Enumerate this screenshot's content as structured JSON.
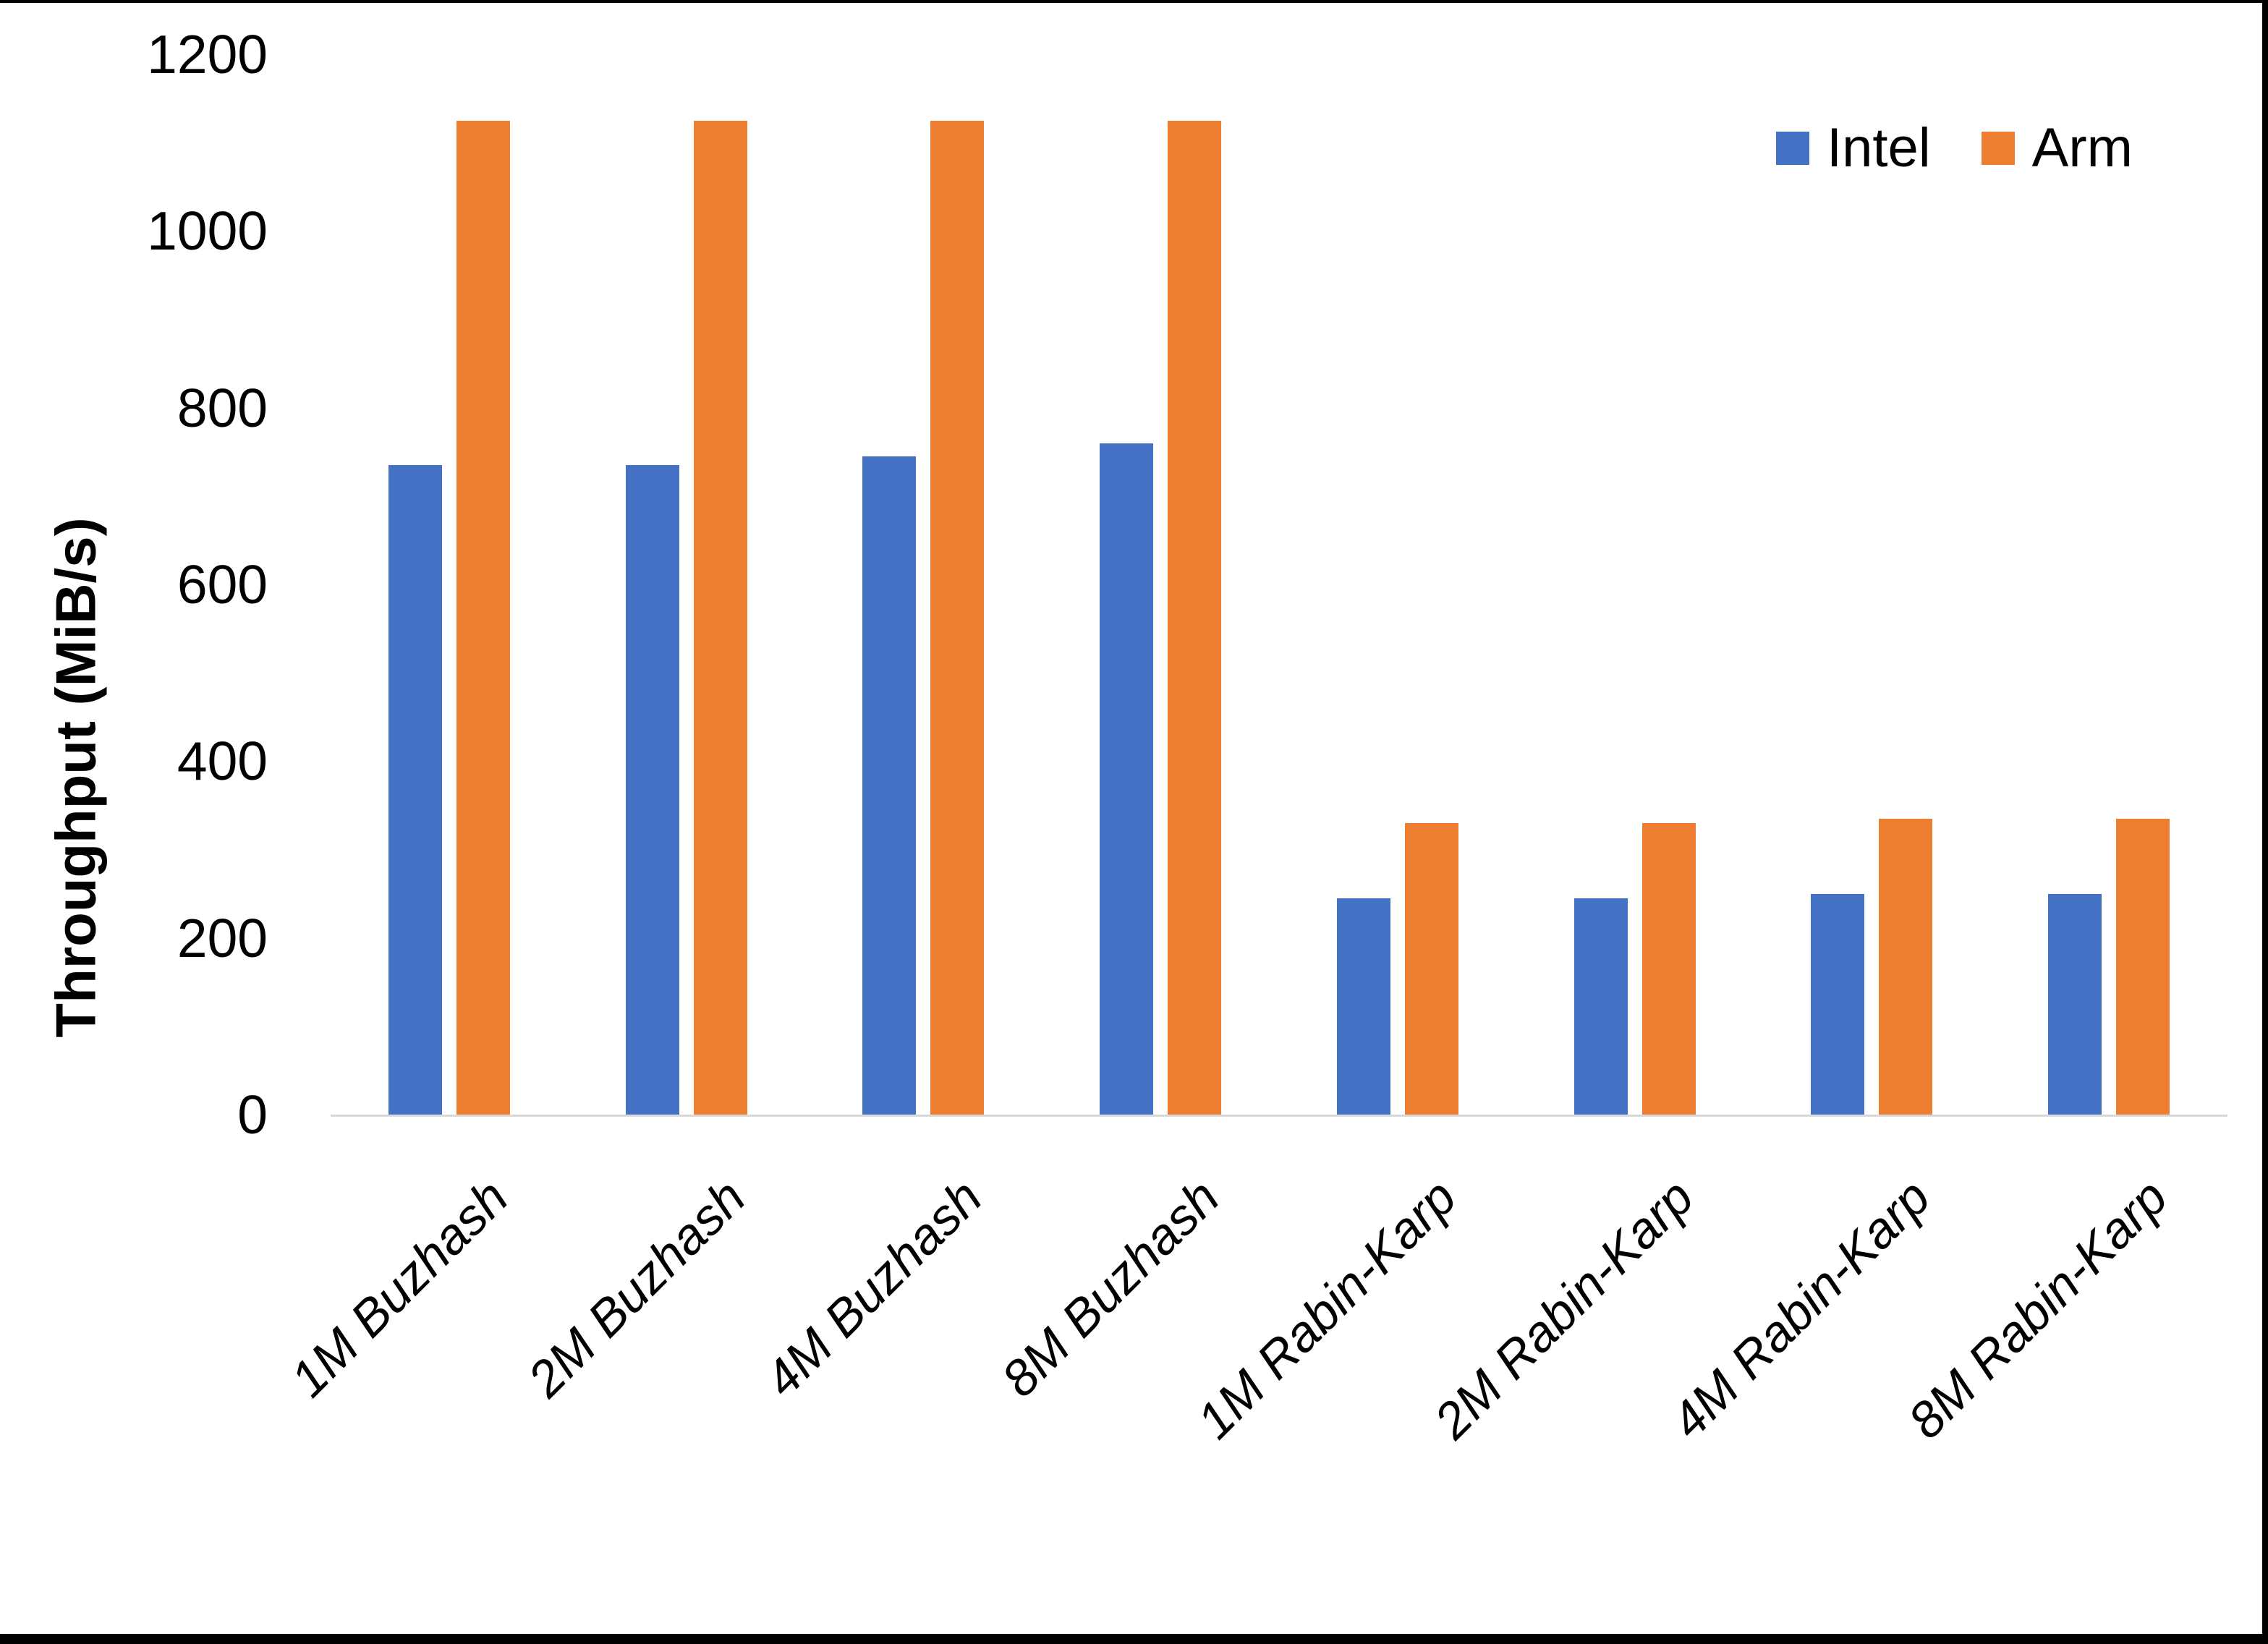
{
  "chart_data": {
    "type": "bar",
    "title": "",
    "ylabel": "Throughput (MiB/s)",
    "xlabel": "",
    "ylim": [
      0,
      1200
    ],
    "yticks": [
      0,
      200,
      400,
      600,
      800,
      1000,
      1200
    ],
    "grid": false,
    "legend_position": "top-right",
    "categories": [
      "1M Buzhash",
      "2M Buzhash",
      "4M Buzhash",
      "8M Buzhash",
      "1M Rabin-Karp",
      "2M Rabin-Karp",
      "4M Rabin-Karp",
      "8M Rabin-Karp"
    ],
    "series": [
      {
        "name": "Intel",
        "color": "#4472C4",
        "values": [
          735,
          735,
          745,
          760,
          245,
          245,
          250,
          250
        ]
      },
      {
        "name": "Arm",
        "color": "#ED7D31",
        "values": [
          1125,
          1125,
          1125,
          1125,
          330,
          330,
          335,
          335
        ]
      }
    ],
    "axis_line_color": "#D9D9D9",
    "text_color": "#000000"
  },
  "frame": {
    "border_color": "#000000"
  }
}
